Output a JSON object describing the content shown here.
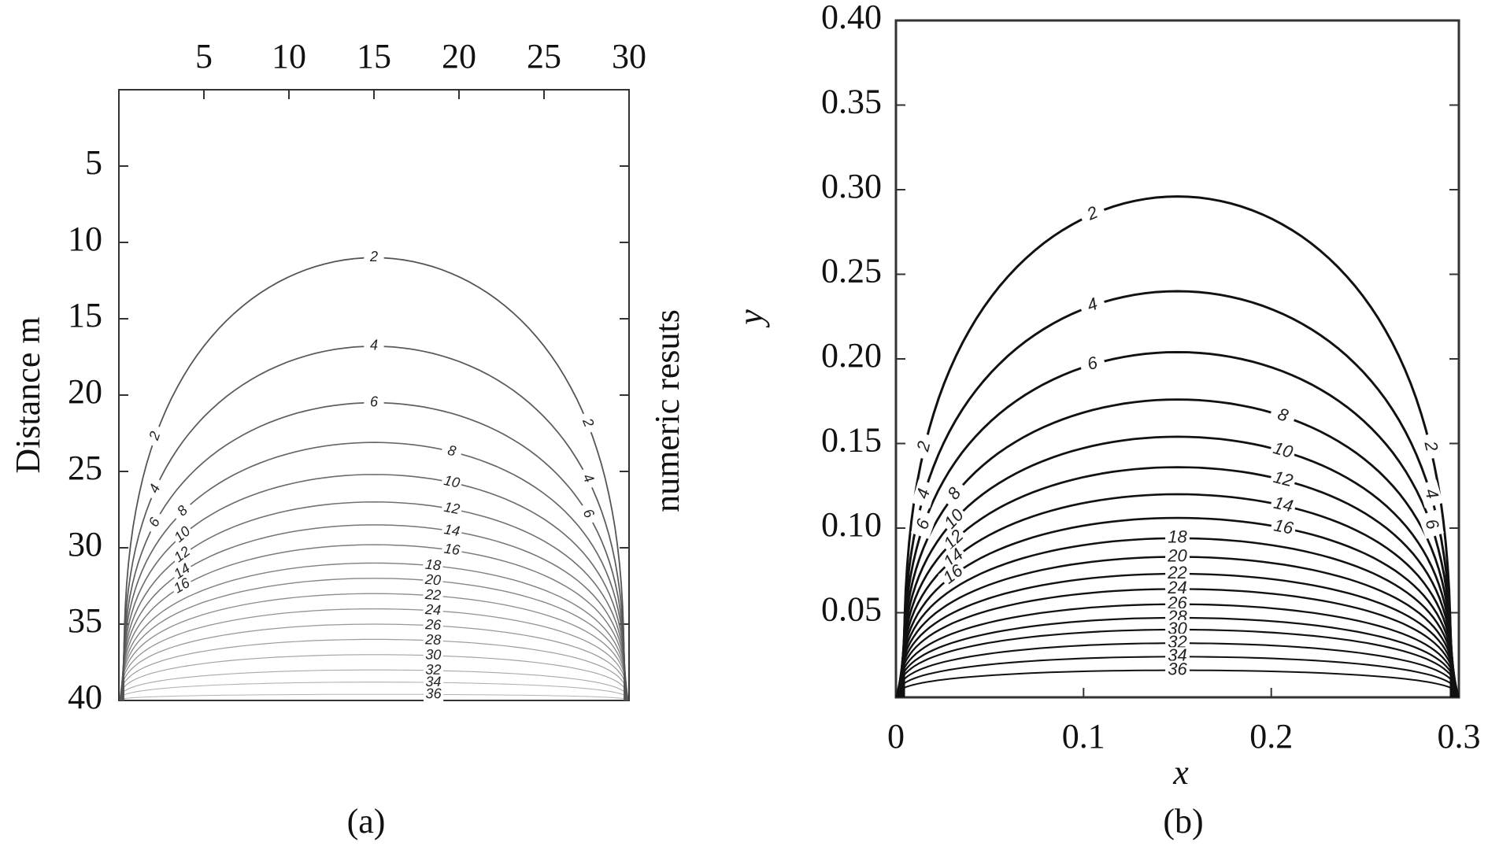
{
  "chart_data": [
    {
      "type": "contour",
      "panel_label": "(a)",
      "title": "",
      "ylabel": "Distance m",
      "right_label": "numeric resuts",
      "x_ticks": [
        5,
        10,
        15,
        20,
        25,
        30
      ],
      "y_ticks": [
        5,
        10,
        15,
        20,
        25,
        30,
        35,
        40
      ],
      "xlim": [
        0,
        30
      ],
      "ylim": [
        0,
        40
      ],
      "x_axis_position": "top",
      "y_axis_inverted": true,
      "grid": false,
      "line_color": "#555555",
      "contour_levels": [
        2,
        4,
        6,
        8,
        10,
        12,
        14,
        16,
        18,
        20,
        22,
        24,
        26,
        28,
        30,
        32,
        34,
        36
      ],
      "labeled_levels": [
        "2",
        "4",
        "6",
        "8",
        "10",
        "12",
        "14",
        "16",
        "18",
        "20",
        "22",
        "24",
        "26",
        "28",
        "30",
        "32",
        "34",
        "36"
      ],
      "contour_peaks": [
        {
          "level": 2,
          "peak_depth": 11.0
        },
        {
          "level": 4,
          "peak_depth": 16.8
        },
        {
          "level": 6,
          "peak_depth": 20.5
        },
        {
          "level": 8,
          "peak_depth": 23.1
        },
        {
          "level": 10,
          "peak_depth": 25.2
        },
        {
          "level": 12,
          "peak_depth": 27.0
        },
        {
          "level": 14,
          "peak_depth": 28.5
        },
        {
          "level": 16,
          "peak_depth": 29.8
        },
        {
          "level": 18,
          "peak_depth": 31.0
        },
        {
          "level": 20,
          "peak_depth": 32.0
        },
        {
          "level": 22,
          "peak_depth": 33.0
        },
        {
          "level": 24,
          "peak_depth": 34.0
        },
        {
          "level": 26,
          "peak_depth": 35.0
        },
        {
          "level": 28,
          "peak_depth": 36.0
        },
        {
          "level": 30,
          "peak_depth": 37.0
        },
        {
          "level": 32,
          "peak_depth": 38.0
        },
        {
          "level": 34,
          "peak_depth": 38.8
        },
        {
          "level": 36,
          "peak_depth": 39.6
        }
      ]
    },
    {
      "type": "contour",
      "panel_label": "(b)",
      "title": "",
      "xlabel": "x",
      "ylabel": "y",
      "x_ticks": [
        "0",
        "0.1",
        "0.2",
        "0.3"
      ],
      "y_ticks": [
        "0.05",
        "0.10",
        "0.15",
        "0.20",
        "0.25",
        "0.30",
        "0.35",
        "0.40"
      ],
      "xlim": [
        0,
        0.3
      ],
      "ylim": [
        0,
        0.4
      ],
      "x_axis_position": "bottom",
      "grid": false,
      "line_color": "#111111",
      "contour_levels": [
        2,
        4,
        6,
        8,
        10,
        12,
        14,
        16,
        18,
        20,
        22,
        24,
        26,
        28,
        30,
        32,
        34,
        36
      ],
      "labeled_levels": [
        "2",
        "4",
        "6",
        "8",
        "10",
        "12",
        "14",
        "16",
        "18",
        "20",
        "22",
        "24",
        "26",
        "28",
        "30",
        "32",
        "34",
        "36"
      ],
      "contour_peaks": [
        {
          "level": 2,
          "peak_y": 0.296
        },
        {
          "level": 4,
          "peak_y": 0.24
        },
        {
          "level": 6,
          "peak_y": 0.204
        },
        {
          "level": 8,
          "peak_y": 0.176
        },
        {
          "level": 10,
          "peak_y": 0.154
        },
        {
          "level": 12,
          "peak_y": 0.136
        },
        {
          "level": 14,
          "peak_y": 0.12
        },
        {
          "level": 16,
          "peak_y": 0.106
        },
        {
          "level": 18,
          "peak_y": 0.094
        },
        {
          "level": 20,
          "peak_y": 0.083
        },
        {
          "level": 22,
          "peak_y": 0.073
        },
        {
          "level": 24,
          "peak_y": 0.064
        },
        {
          "level": 26,
          "peak_y": 0.055
        },
        {
          "level": 28,
          "peak_y": 0.047
        },
        {
          "level": 30,
          "peak_y": 0.04
        },
        {
          "level": 32,
          "peak_y": 0.032
        },
        {
          "level": 34,
          "peak_y": 0.024
        },
        {
          "level": 36,
          "peak_y": 0.016
        }
      ]
    }
  ]
}
